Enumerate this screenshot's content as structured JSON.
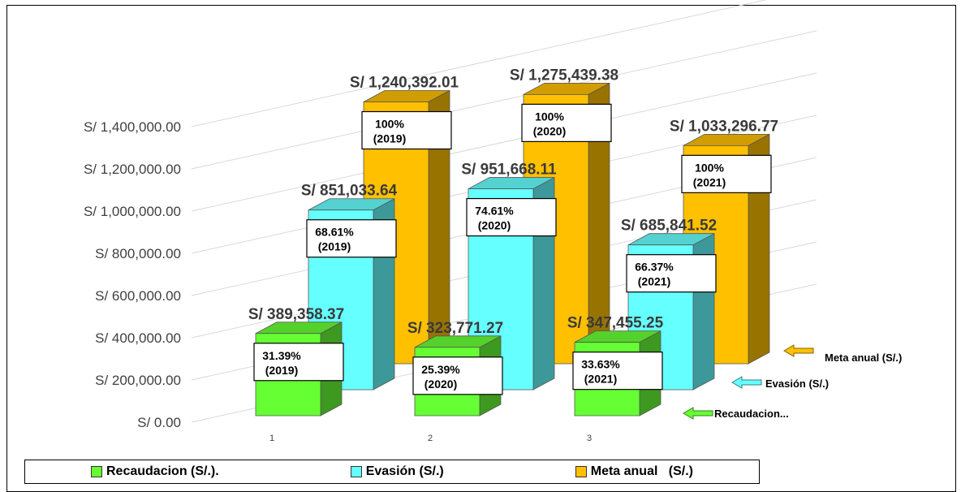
{
  "chart_data": {
    "type": "bar",
    "categories": [
      "1",
      "2",
      "3"
    ],
    "yticks": [
      "S/ 0.00",
      "S/ 200,000.00",
      "S/ 400,000.00",
      "S/ 600,000.00",
      "S/ 800,000.00",
      "S/ 1,000,000.00",
      "S/ 1,200,000.00",
      "S/ 1,400,000.00"
    ],
    "ylim": [
      0,
      1400000
    ],
    "grid": true,
    "legend_position": "bottom",
    "series": [
      {
        "name": "Recaudacion (S/.).",
        "side_label": "Recaudacion...",
        "color": "#66ff33",
        "values": [
          389358.37,
          323771.27,
          347455.25
        ],
        "value_labels": [
          "S/ 389,358.37",
          "S/ 323,771.27",
          "S/ 347,455.25"
        ],
        "pct_labels": [
          [
            "31.39%",
            "(2019)"
          ],
          [
            "25.39%",
            "(2020)"
          ],
          [
            "33.63%",
            "(2021)"
          ]
        ]
      },
      {
        "name": "Evasión (S/.)",
        "side_label": "Evasión (S/.)",
        "color": "#66ffff",
        "values": [
          851033.64,
          951668.11,
          685841.52
        ],
        "value_labels": [
          "S/ 851,033.64",
          "S/ 951,668.11",
          "S/ 685,841.52"
        ],
        "pct_labels": [
          [
            "68.61%",
            "(2019)"
          ],
          [
            "74.61%",
            "(2020)"
          ],
          [
            "66.37%",
            "(2021)"
          ]
        ]
      },
      {
        "name": "Meta anual   (S/.)",
        "side_label": "Meta anual   (S/.)",
        "color": "#ffc000",
        "values": [
          1240392.01,
          1275439.38,
          1033296.77
        ],
        "value_labels": [
          "S/ 1,240,392.01",
          "S/ 1,275,439.38",
          "S/ 1,033,296.77"
        ],
        "pct_labels": [
          [
            "100%",
            "(2019)"
          ],
          [
            "100%",
            "(2020)"
          ],
          [
            "100%",
            "(2021)"
          ]
        ]
      }
    ]
  }
}
